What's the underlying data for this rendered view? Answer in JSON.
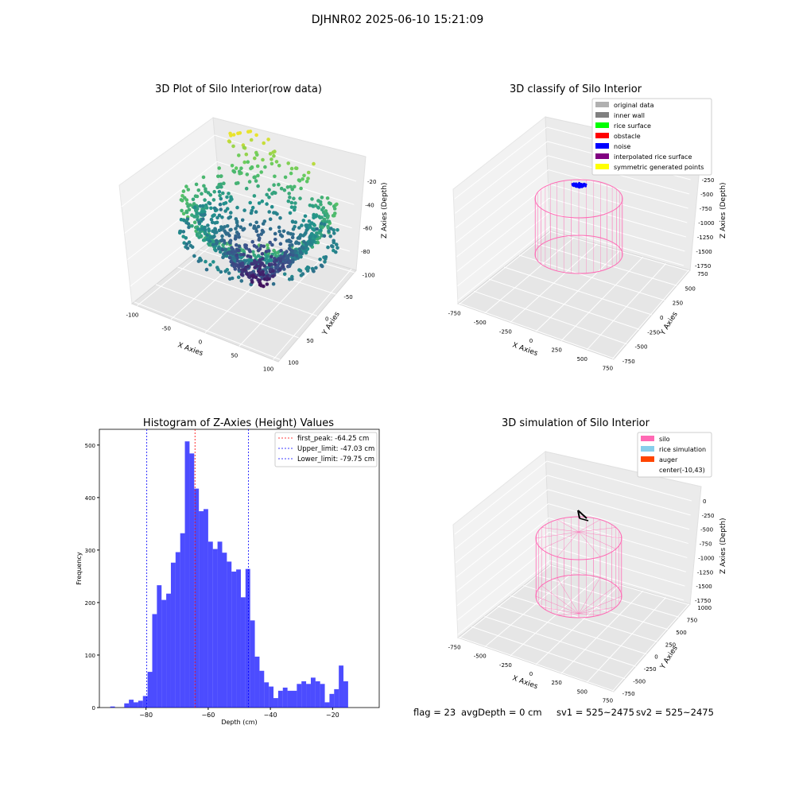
{
  "suptitle": "DJHNR02 2025-06-10 15:21:09",
  "footer": {
    "flag": "flag = 23",
    "avg_depth": "avgDepth = 0 cm",
    "sv1": "sv1 = 525~2475",
    "sv2": "sv2 = 525~2475"
  },
  "colors": {
    "silo": "#ff69b4",
    "rice_simulation": "#87ceeb",
    "auger": "#ff4500",
    "histogram": "#0000ff",
    "peak_line": "#ff0000",
    "limit_line": "#0000ff"
  },
  "chart_data": [
    {
      "type": "scatter",
      "projection": "3d",
      "title": "3D Plot of Silo Interior(row data)",
      "xlabel": "X Axies",
      "ylabel": "Y Axies",
      "zlabel": "Z Axies (Depth)",
      "x_ticks": [
        "-100",
        "-50",
        "0",
        "50",
        "100"
      ],
      "y_ticks": [
        "-100",
        "-50",
        "0",
        "50",
        "100"
      ],
      "z_ticks": [
        "-20",
        "-40",
        "-60",
        "-80"
      ],
      "xlim": [
        -120,
        120
      ],
      "ylim": [
        -110,
        110
      ],
      "zlim": [
        -95,
        -5
      ],
      "colormap": "viridis",
      "grid": true,
      "description_shape": "cone-shaped surface, center around (0, 20), low at center (~-90), high near wall (~-10)"
    },
    {
      "type": "scatter",
      "projection": "3d",
      "title": "3D classify of Silo Interior",
      "xlabel": "X Axies",
      "ylabel": "Y Axies",
      "zlabel": "Z Axies (Depth)",
      "x_ticks": [
        "-750",
        "-500",
        "-250",
        "0",
        "250",
        "500",
        "750"
      ],
      "y_ticks": [
        "750",
        "500",
        "250",
        "0",
        "-250",
        "-500",
        "-750"
      ],
      "z_ticks": [
        "0",
        "-250",
        "-500",
        "-750",
        "-1000",
        "-1250",
        "-1500",
        "-1750"
      ],
      "legend_position": "top-right",
      "legend": [
        {
          "label": "original data",
          "color": "#b0b0b0"
        },
        {
          "label": "inner wall",
          "color": "#808080"
        },
        {
          "label": "rice surface",
          "color": "#00ff00"
        },
        {
          "label": "obstacle",
          "color": "#ff0000"
        },
        {
          "label": "noise",
          "color": "#0000ff"
        },
        {
          "label": "interpolated rice surface",
          "color": "#800080"
        },
        {
          "label": "symmetric generated points",
          "color": "#ffff00"
        }
      ]
    },
    {
      "type": "bar",
      "title": "Histogram of Z-Axies (Height) Values",
      "xlabel": "Depth (cm)",
      "ylabel": "Frequency",
      "xlim": [
        -95,
        -5
      ],
      "ylim": [
        0,
        530
      ],
      "x_ticks": [
        -80,
        -60,
        -40,
        -20
      ],
      "y_ticks": [
        0,
        100,
        200,
        300,
        400,
        500
      ],
      "bin_start": -91.5,
      "bin_width": 1.5,
      "values": [
        2,
        0,
        0,
        8,
        15,
        10,
        13,
        22,
        68,
        178,
        233,
        205,
        217,
        276,
        296,
        332,
        507,
        484,
        417,
        374,
        378,
        316,
        302,
        316,
        295,
        278,
        259,
        263,
        210,
        264,
        166,
        97,
        70,
        48,
        40,
        18,
        32,
        38,
        32,
        32,
        45,
        50,
        45,
        57,
        50,
        45,
        10,
        26,
        35,
        80,
        50
      ],
      "vlines": [
        {
          "x": -64.25,
          "color": "#ff0000",
          "label": "first_peak: -64.25 cm"
        },
        {
          "x": -47.03,
          "color": "#0000ff",
          "label": "Upper_limit: -47.03 cm"
        },
        {
          "x": -79.75,
          "color": "#0000ff",
          "label": "Lower_limit: -79.75 cm"
        }
      ],
      "legend_position": "top-right"
    },
    {
      "type": "scatter",
      "projection": "3d",
      "title": "3D simulation of Silo Interior",
      "xlabel": "X Axies",
      "ylabel": "Y Axies",
      "zlabel": "Z Axies (Depth)",
      "x_ticks": [
        "-750",
        "-500",
        "-250",
        "0",
        "250",
        "500",
        "750"
      ],
      "y_ticks": [
        "1000",
        "750",
        "500",
        "250",
        "0",
        "-250",
        "-500",
        "-750"
      ],
      "z_ticks": [
        "0",
        "-250",
        "-500",
        "-750",
        "-1000",
        "-1250",
        "-1500",
        "-1750"
      ],
      "legend_position": "top-right",
      "legend": [
        {
          "label": "silo",
          "color": "#ff69b4"
        },
        {
          "label": "rice simulation",
          "color": "#87ceeb"
        },
        {
          "label": "auger",
          "color": "#ff4500"
        },
        {
          "label": "center(-10,43)",
          "color": "#ffffff"
        }
      ]
    }
  ]
}
